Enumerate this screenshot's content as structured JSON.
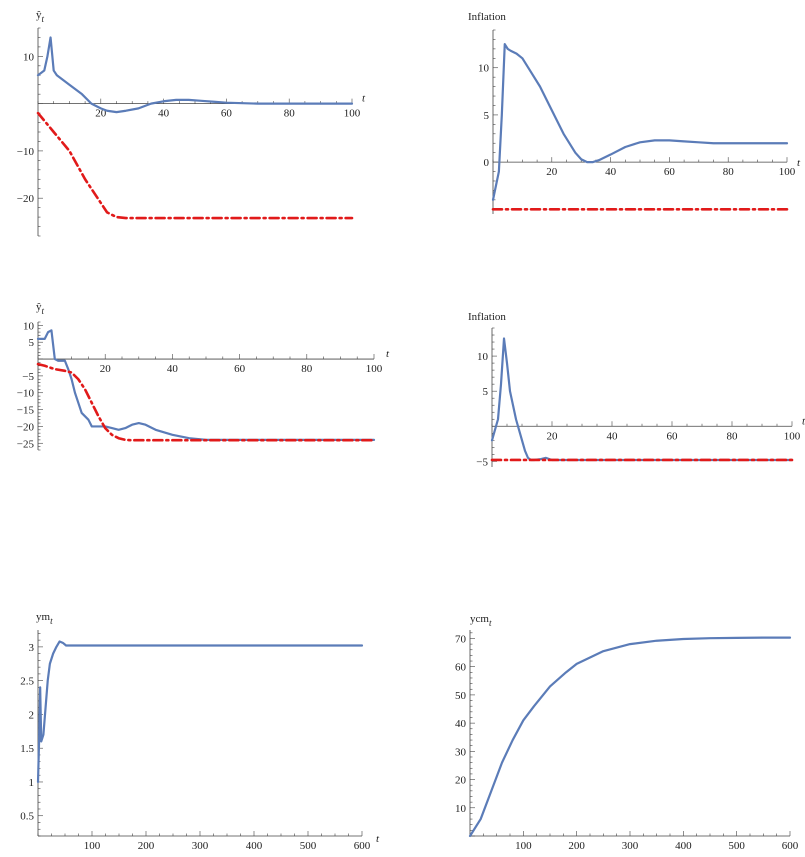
{
  "chart_data": [
    {
      "type": "line",
      "title": "",
      "ylabel": "ŷ_t",
      "xlabel": "t",
      "xlim": [
        0,
        100
      ],
      "ylim": [
        -28,
        16
      ],
      "xticks": [
        20,
        40,
        60,
        80,
        100
      ],
      "yticks": [
        10,
        -10,
        -20
      ],
      "series": [
        {
          "style": "solid",
          "color": "#5b7cb8",
          "x": [
            0,
            2,
            3,
            4,
            5,
            6,
            8,
            10,
            14,
            17,
            20,
            22,
            25,
            28,
            32,
            36,
            40,
            44,
            48,
            52,
            56,
            60,
            70,
            80,
            90,
            100
          ],
          "y": [
            6,
            7,
            10,
            14,
            7,
            6,
            5,
            4,
            2,
            0,
            -1,
            -1.5,
            -1.8,
            -1.5,
            -1,
            0,
            0.5,
            0.8,
            0.8,
            0.6,
            0.4,
            0.2,
            0,
            0,
            0,
            0
          ]
        },
        {
          "style": "dashdot",
          "color": "#e11a1a",
          "x": [
            0,
            5,
            10,
            15,
            20,
            22,
            25,
            28,
            32,
            40,
            60,
            80,
            100
          ],
          "y": [
            -2,
            -6,
            -10,
            -16,
            -21,
            -23,
            -24,
            -24.2,
            -24.2,
            -24.2,
            -24.2,
            -24.2,
            -24.2
          ]
        }
      ]
    },
    {
      "type": "line",
      "title": "",
      "ylabel": "Inflation",
      "xlabel": "t",
      "xlim": [
        0,
        100
      ],
      "ylim": [
        -5.5,
        14
      ],
      "xticks": [
        20,
        40,
        60,
        80,
        100
      ],
      "yticks": [
        10,
        5,
        0
      ],
      "series": [
        {
          "style": "solid",
          "color": "#5b7cb8",
          "x": [
            0,
            2,
            3,
            4,
            5,
            6,
            8,
            10,
            13,
            16,
            20,
            24,
            28,
            30,
            32,
            34,
            36,
            40,
            45,
            50,
            55,
            60,
            65,
            70,
            75,
            80,
            90,
            100
          ],
          "y": [
            -4,
            -1,
            5,
            12.5,
            12,
            11.8,
            11.5,
            11,
            9.5,
            8,
            5.5,
            3,
            1,
            0.3,
            0,
            0,
            0.2,
            0.8,
            1.6,
            2.1,
            2.3,
            2.3,
            2.2,
            2.1,
            2,
            2,
            2,
            2
          ]
        },
        {
          "style": "dashdot",
          "color": "#e11a1a",
          "x": [
            0,
            100
          ],
          "y": [
            -5,
            -5
          ]
        }
      ]
    },
    {
      "type": "line",
      "title": "",
      "ylabel": "ŷ_t",
      "xlabel": "t",
      "xlim": [
        0,
        100
      ],
      "ylim": [
        -27,
        11
      ],
      "xticks": [
        20,
        40,
        60,
        80,
        100
      ],
      "yticks": [
        10,
        5,
        -5,
        -10,
        -15,
        -20,
        -25
      ],
      "series": [
        {
          "style": "solid",
          "color": "#5b7cb8",
          "x": [
            0,
            2,
            3,
            4,
            5,
            6,
            8,
            9,
            10,
            11,
            12,
            13,
            15,
            16,
            17,
            18,
            20,
            22,
            24,
            26,
            28,
            30,
            32,
            35,
            40,
            45,
            50,
            60,
            70,
            80,
            90,
            100
          ],
          "y": [
            6,
            6,
            8,
            8.5,
            0,
            -0.5,
            -0.5,
            -3,
            -6,
            -10,
            -13,
            -16,
            -18,
            -20,
            -20,
            -20,
            -20,
            -20.5,
            -21,
            -20.5,
            -19.5,
            -19,
            -19.5,
            -21,
            -22.5,
            -23.5,
            -24,
            -24,
            -24,
            -24,
            -24,
            -24
          ]
        },
        {
          "style": "dashdot",
          "color": "#e11a1a",
          "x": [
            0,
            2,
            5,
            8,
            10,
            12,
            14,
            16,
            18,
            20,
            22,
            24,
            26,
            28,
            30,
            40,
            60,
            80,
            100
          ],
          "y": [
            -1.5,
            -2,
            -3,
            -3.5,
            -4,
            -6,
            -9,
            -13,
            -17,
            -20.5,
            -22.5,
            -23.5,
            -24,
            -24.1,
            -24.1,
            -24.1,
            -24.1,
            -24.1,
            -24.1
          ]
        }
      ]
    },
    {
      "type": "line",
      "title": "",
      "ylabel": "Inflation",
      "xlabel": "t",
      "xlim": [
        0,
        100
      ],
      "ylim": [
        -5.8,
        14
      ],
      "xticks": [
        20,
        40,
        60,
        80,
        100
      ],
      "yticks": [
        10,
        5,
        -5
      ],
      "series": [
        {
          "style": "solid",
          "color": "#5b7cb8",
          "x": [
            0,
            2,
            3,
            4,
            5,
            6,
            8,
            10,
            11,
            12,
            13,
            14,
            16,
            18,
            20,
            40,
            60,
            80,
            100
          ],
          "y": [
            -2,
            1,
            6,
            12.5,
            9,
            5,
            1,
            -2,
            -3.5,
            -4.5,
            -4.8,
            -4.8,
            -4.7,
            -4.5,
            -4.8,
            -4.8,
            -4.8,
            -4.8,
            -4.8
          ]
        },
        {
          "style": "dashdot",
          "color": "#e11a1a",
          "x": [
            0,
            100
          ],
          "y": [
            -4.8,
            -4.8
          ]
        }
      ]
    },
    {
      "type": "line",
      "title": "",
      "ylabel": "ym_t",
      "xlabel": "t",
      "xlim": [
        0,
        600
      ],
      "ylim": [
        0.2,
        3.25
      ],
      "xticks": [
        100,
        200,
        300,
        400,
        500,
        600
      ],
      "yticks": [
        3.0,
        2.5,
        2.0,
        1.5,
        1.0,
        0.5
      ],
      "series": [
        {
          "style": "solid",
          "color": "#5b7cb8",
          "x": [
            0,
            2,
            4,
            6,
            10,
            14,
            18,
            22,
            28,
            34,
            40,
            46,
            52,
            60,
            70,
            100,
            200,
            300,
            400,
            500,
            600
          ],
          "y": [
            1.0,
            1.6,
            2.4,
            1.6,
            1.7,
            2.1,
            2.5,
            2.75,
            2.9,
            3.0,
            3.08,
            3.06,
            3.02,
            3.02,
            3.02,
            3.02,
            3.02,
            3.02,
            3.02,
            3.02,
            3.02
          ]
        }
      ]
    },
    {
      "type": "line",
      "title": "",
      "ylabel": "ycm_t",
      "xlabel": "",
      "xlim": [
        0,
        600
      ],
      "ylim": [
        0,
        73
      ],
      "xticks": [
        100,
        200,
        300,
        400,
        500,
        600
      ],
      "yticks": [
        70,
        60,
        50,
        40,
        30,
        20,
        10
      ],
      "series": [
        {
          "style": "solid",
          "color": "#5b7cb8",
          "x": [
            0,
            20,
            40,
            60,
            80,
            100,
            120,
            150,
            180,
            200,
            250,
            300,
            350,
            400,
            450,
            500,
            550,
            600
          ],
          "y": [
            0,
            6,
            16,
            26,
            34,
            41,
            46,
            53,
            58,
            61,
            65.5,
            68,
            69.2,
            69.8,
            70.1,
            70.2,
            70.3,
            70.3
          ]
        }
      ]
    }
  ]
}
